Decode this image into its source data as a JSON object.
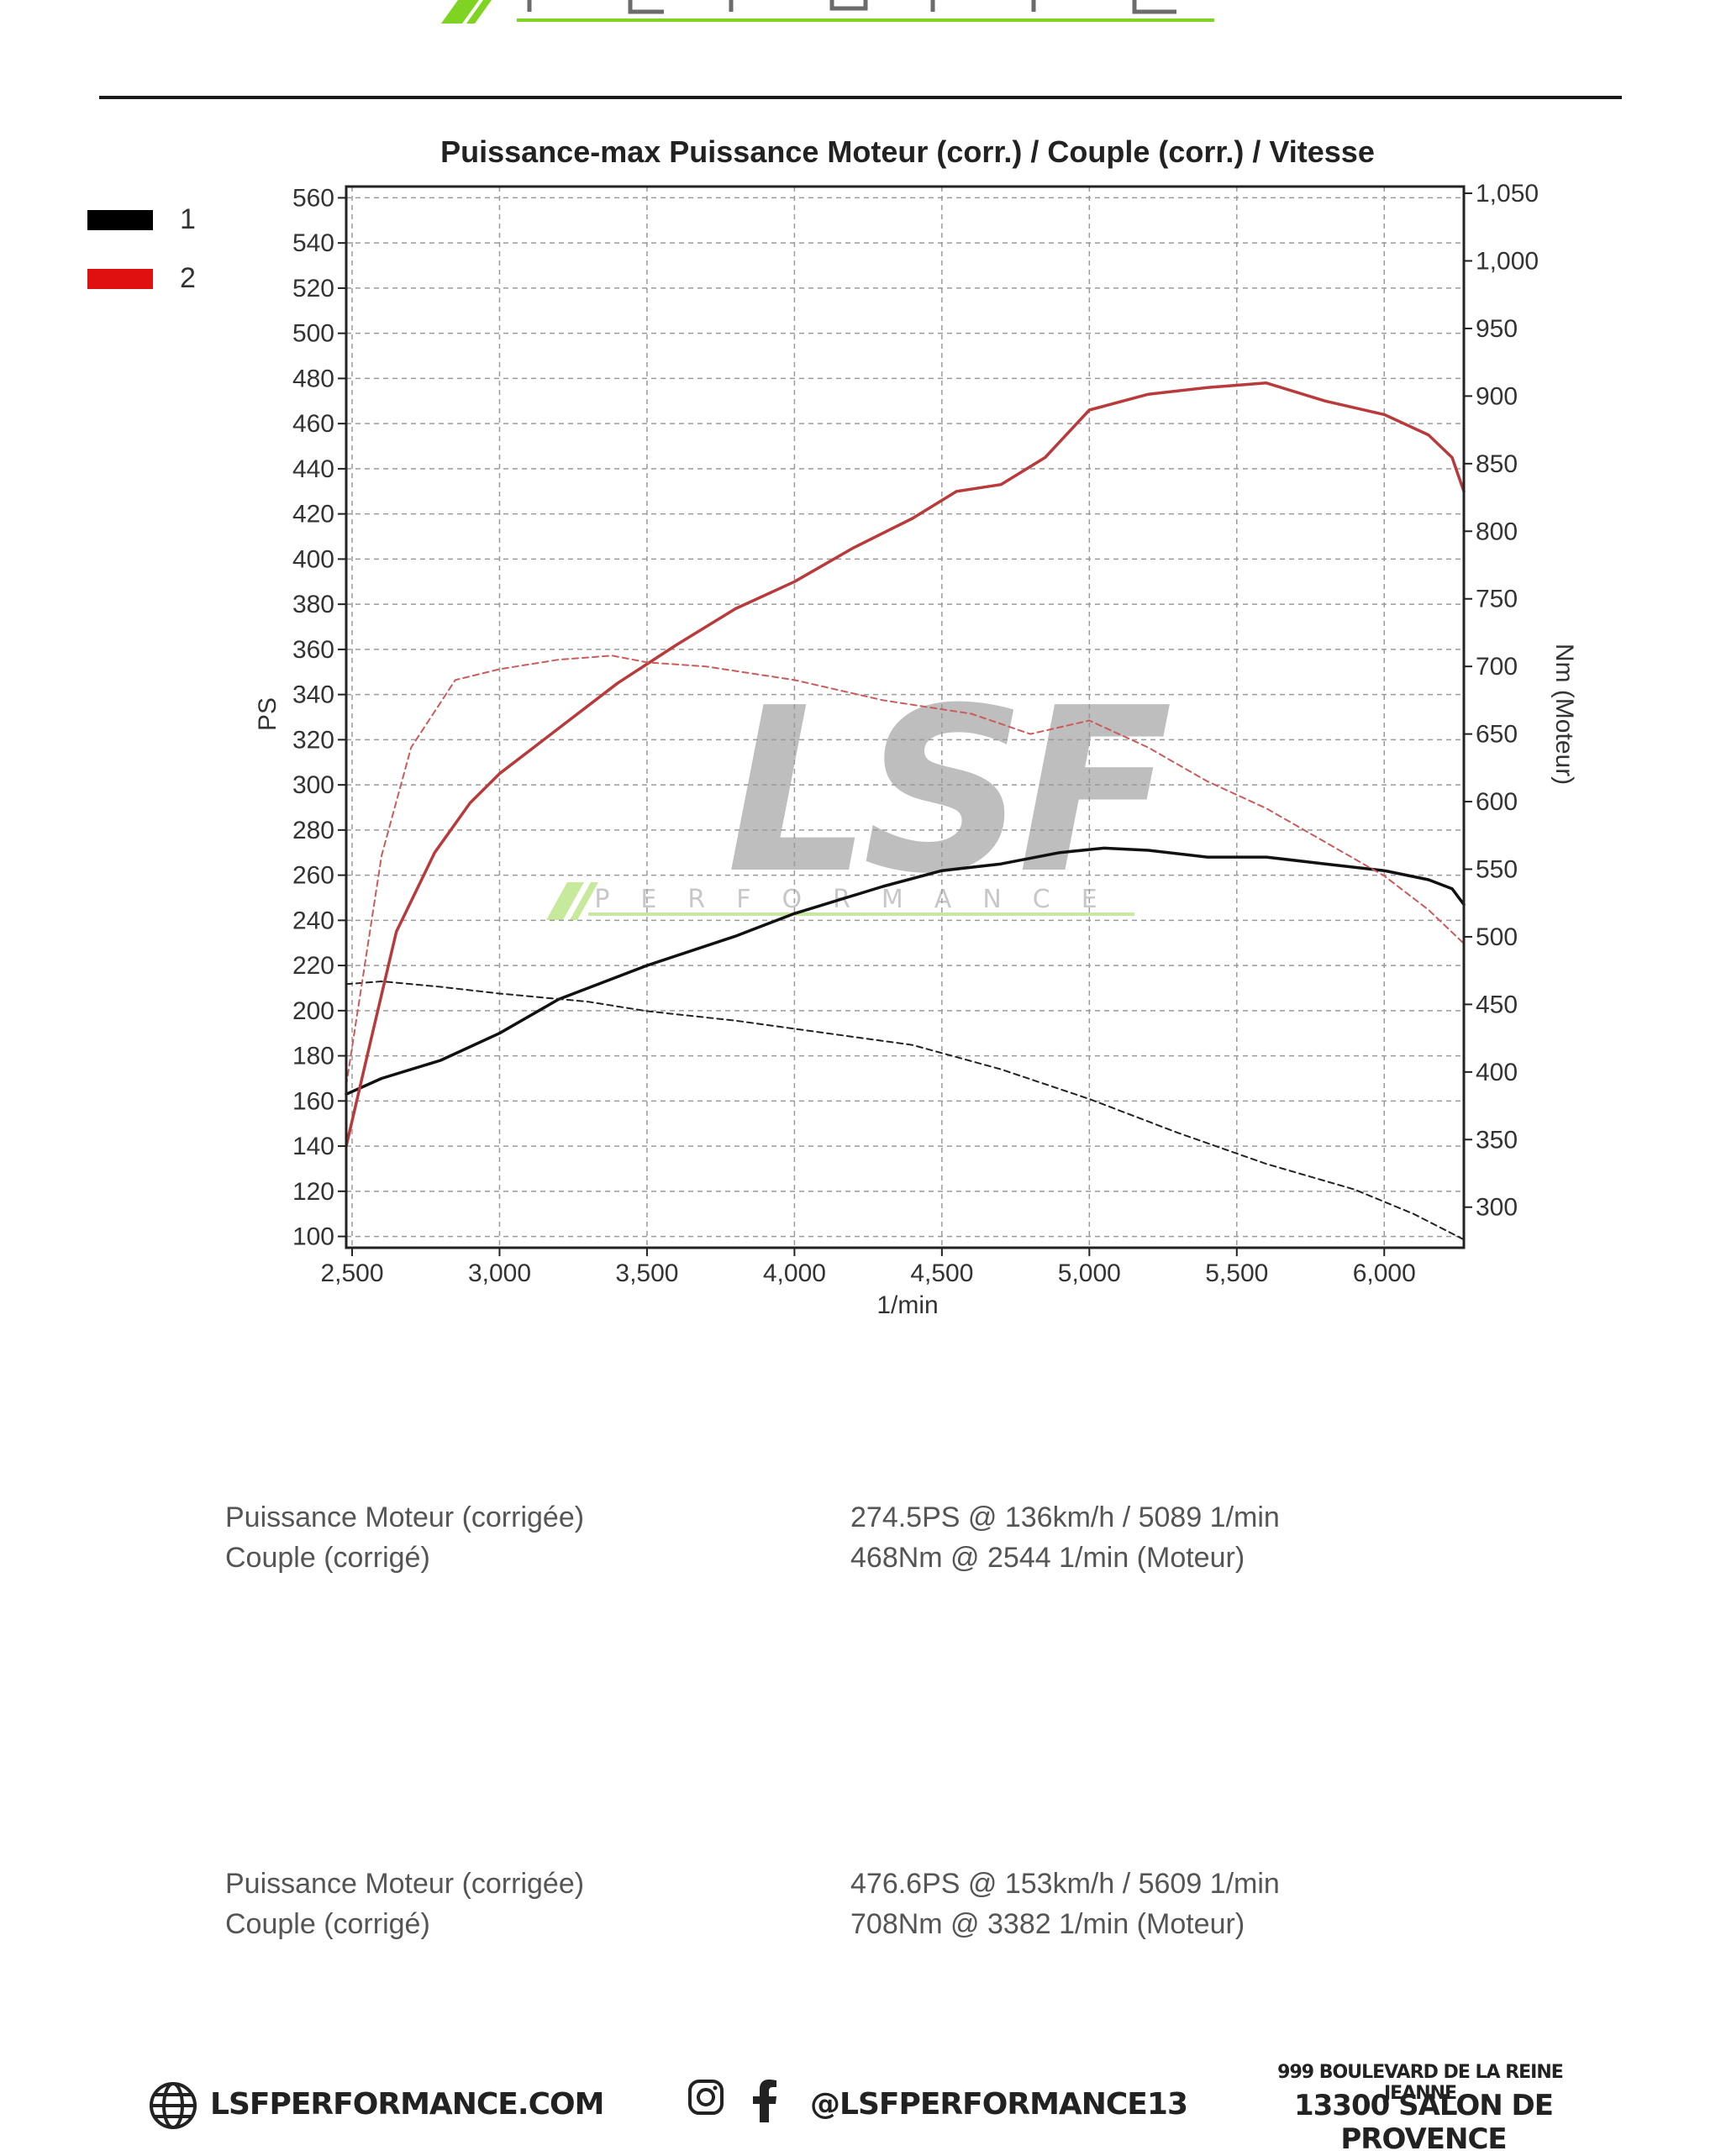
{
  "brand": {
    "top_logo_name": "lsf-performance-logo",
    "watermark_main": "LSF",
    "watermark_sub": "PERFORMANCE",
    "accent_color": "#7fd321"
  },
  "legend": [
    {
      "label": "1",
      "color": "#000000"
    },
    {
      "label": "2",
      "color": "#e01010"
    }
  ],
  "chart_data": {
    "type": "line",
    "title": "Puissance-max Puissance Moteur (corr.) / Couple (corr.) / Vitesse",
    "xlabel": "1/min",
    "ylabel_left": "PS",
    "ylabel_right": "Nm (Moteur)",
    "xlim": [
      2480,
      6270
    ],
    "ylim_left": [
      95,
      565
    ],
    "ylim_right": [
      270,
      1055
    ],
    "x_ticks": [
      2500,
      3000,
      3500,
      4000,
      4500,
      5000,
      5500,
      6000
    ],
    "x_tick_labels": [
      "2,500",
      "3,000",
      "3,500",
      "4,000",
      "4,500",
      "5,000",
      "5,500",
      "6,000"
    ],
    "y_left_ticks": [
      100,
      120,
      140,
      160,
      180,
      200,
      220,
      240,
      260,
      280,
      300,
      320,
      340,
      360,
      380,
      400,
      420,
      440,
      460,
      480,
      500,
      520,
      540,
      560
    ],
    "y_right_ticks": [
      300,
      350,
      400,
      450,
      500,
      550,
      600,
      650,
      700,
      750,
      800,
      850,
      900,
      950,
      1000,
      1050
    ],
    "y_right_tick_labels": [
      "300",
      "350",
      "400",
      "450",
      "500",
      "550",
      "600",
      "650",
      "700",
      "750",
      "800",
      "850",
      "900",
      "950",
      "1,000",
      "1,050"
    ],
    "grid": true,
    "series": [
      {
        "axis": "left",
        "color": "#111111",
        "style": "solid",
        "x": [
          2480,
          2600,
          2800,
          3000,
          3200,
          3500,
          3800,
          4000,
          4300,
          4500,
          4700,
          4900,
          5050,
          5200,
          5400,
          5600,
          5800,
          6000,
          6150,
          6230,
          6270
        ],
        "y": [
          163,
          170,
          178,
          190,
          205,
          220,
          233,
          243,
          255,
          262,
          265,
          270,
          272,
          271,
          268,
          268,
          265,
          262,
          258,
          254,
          247
        ]
      },
      {
        "axis": "right",
        "color": "#222222",
        "style": "dashed",
        "x": [
          2480,
          2600,
          2800,
          3000,
          3300,
          3500,
          3800,
          4000,
          4400,
          4700,
          5000,
          5300,
          5600,
          5900,
          6100,
          6270
        ],
        "y": [
          465,
          467,
          463,
          458,
          452,
          445,
          438,
          432,
          420,
          402,
          380,
          355,
          332,
          313,
          295,
          276
        ]
      },
      {
        "axis": "left",
        "color": "#b83a3a",
        "style": "solid",
        "x": [
          2480,
          2560,
          2650,
          2780,
          2900,
          3000,
          3200,
          3400,
          3600,
          3800,
          4000,
          4200,
          4400,
          4550,
          4700,
          4850,
          5000,
          5200,
          5400,
          5600,
          5800,
          6000,
          6150,
          6230,
          6270
        ],
        "y": [
          140,
          185,
          235,
          270,
          292,
          305,
          325,
          345,
          362,
          378,
          390,
          405,
          418,
          430,
          433,
          445,
          466,
          473,
          476,
          478,
          470,
          464,
          455,
          445,
          430
        ]
      },
      {
        "axis": "right",
        "color": "#cc5a5a",
        "style": "dashed",
        "x": [
          2480,
          2600,
          2700,
          2850,
          3000,
          3200,
          3382,
          3500,
          3700,
          4000,
          4300,
          4600,
          4800,
          5000,
          5200,
          5400,
          5600,
          5800,
          6000,
          6150,
          6270
        ],
        "y": [
          390,
          560,
          640,
          690,
          698,
          705,
          708,
          703,
          700,
          690,
          675,
          665,
          650,
          660,
          640,
          615,
          595,
          570,
          545,
          520,
          495
        ]
      }
    ]
  },
  "summaries": [
    {
      "power_label": "Puissance Moteur (corrigée)",
      "power_value": "274.5PS @ 136km/h / 5089 1/min",
      "torque_label": "Couple (corrigé)",
      "torque_value": "468Nm @ 2544 1/min (Moteur)"
    },
    {
      "power_label": "Puissance Moteur (corrigée)",
      "power_value": "476.6PS @ 153km/h / 5609 1/min",
      "torque_label": "Couple (corrigé)",
      "torque_value": "708Nm @ 3382 1/min (Moteur)"
    }
  ],
  "footer": {
    "website": "LSFPERFORMANCE.COM",
    "social_handle": "@LSFPERFORMANCE13",
    "address_line1": "999 BOULEVARD DE LA REINE JEANNE",
    "address_line2": "13300 SALON DE PROVENCE",
    "globe_icon": "globe-icon",
    "instagram_icon": "instagram-icon",
    "facebook_icon": "facebook-icon"
  }
}
